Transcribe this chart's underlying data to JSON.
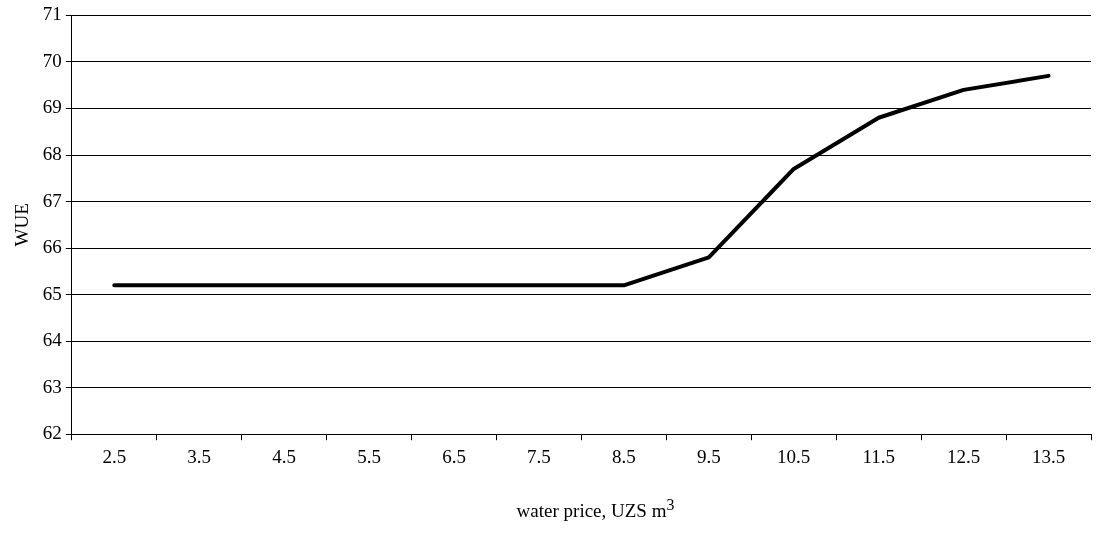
{
  "chart_data": {
    "type": "line",
    "xlabel": "water price, UZS m$^{3}$",
    "ylabel": "WUE",
    "categories": [
      "2.5",
      "3.5",
      "4.5",
      "5.5",
      "6.5",
      "7.5",
      "8.5",
      "9.5",
      "10.5",
      "11.5",
      "12.5",
      "13.5"
    ],
    "series": [
      {
        "color": "#000000",
        "values": [
          65.2,
          65.2,
          65.2,
          65.2,
          65.2,
          65.2,
          65.2,
          65.8,
          67.7,
          68.8,
          69.4,
          69.7
        ]
      }
    ],
    "ylim": [
      62,
      71
    ],
    "yticks": [
      62,
      63,
      64,
      65,
      66,
      67,
      68,
      69,
      70,
      71
    ],
    "grid": "y",
    "legend": false,
    "marker": "none",
    "line_style": "solid"
  }
}
